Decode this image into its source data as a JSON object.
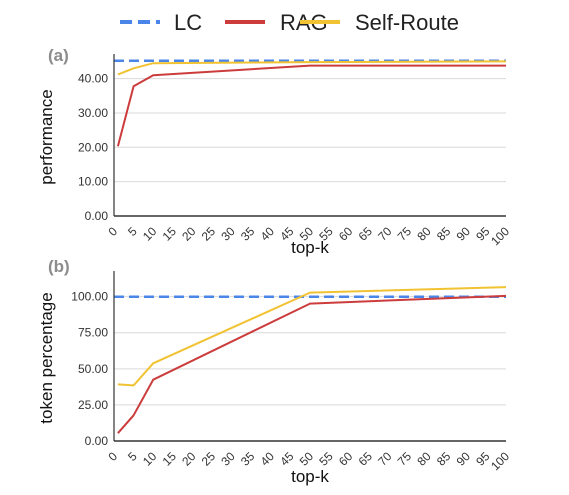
{
  "legend": [
    {
      "name": "LC",
      "color": "#4a86e8",
      "dash": true
    },
    {
      "name": "RAG",
      "color": "#cc3c3c",
      "dash": false
    },
    {
      "name": "Self-Route",
      "color": "#f1c232",
      "dash": false
    }
  ],
  "colors": {
    "grid": "#d9d9d9",
    "axis": "#333333",
    "panel_label": "#8c8c8c"
  },
  "chart_data": [
    {
      "type": "line",
      "panel_label": "(a)",
      "xlabel": "top-k",
      "ylabel": "performance",
      "xlim": [
        0,
        100
      ],
      "ylim": [
        0,
        46
      ],
      "x_ticks": [
        "0",
        "5",
        "10",
        "15",
        "20",
        "25",
        "30",
        "35",
        "40",
        "45",
        "50",
        "55",
        "60",
        "65",
        "70",
        "75",
        "80",
        "85",
        "90",
        "95",
        "100"
      ],
      "y_ticks": [
        "0.00",
        "10.00",
        "20.00",
        "30.00",
        "40.00"
      ],
      "y_tick_values": [
        0,
        10,
        20,
        30,
        40
      ],
      "grid": true,
      "series": [
        {
          "name": "LC",
          "dash": true,
          "x": [
            0,
            100
          ],
          "y": [
            45.2,
            45.2
          ]
        },
        {
          "name": "RAG",
          "dash": false,
          "x": [
            1,
            5,
            10,
            50,
            100
          ],
          "y": [
            20.3,
            37.8,
            41.0,
            43.8,
            43.8
          ]
        },
        {
          "name": "Self-Route",
          "dash": false,
          "x": [
            1,
            5,
            10,
            50,
            100
          ],
          "y": [
            41.2,
            43.0,
            44.5,
            44.8,
            45.0
          ]
        }
      ]
    },
    {
      "type": "line",
      "panel_label": "(b)",
      "xlabel": "top-k",
      "ylabel": "token percentage",
      "xlim": [
        0,
        100
      ],
      "ylim": [
        0,
        115
      ],
      "x_ticks": [
        "0",
        "5",
        "10",
        "15",
        "20",
        "25",
        "30",
        "35",
        "40",
        "45",
        "50",
        "55",
        "60",
        "65",
        "70",
        "75",
        "80",
        "85",
        "90",
        "95",
        "100"
      ],
      "y_ticks": [
        "0.00",
        "25.00",
        "50.00",
        "75.00",
        "100.00"
      ],
      "y_tick_values": [
        0,
        25,
        50,
        75,
        100
      ],
      "grid": true,
      "series": [
        {
          "name": "LC",
          "dash": true,
          "x": [
            0,
            100
          ],
          "y": [
            100,
            100
          ]
        },
        {
          "name": "RAG",
          "dash": false,
          "x": [
            1,
            5,
            10,
            50,
            100
          ],
          "y": [
            5.4,
            17.8,
            42.5,
            95.2,
            100.5
          ]
        },
        {
          "name": "Self-Route",
          "dash": false,
          "x": [
            1,
            5,
            10,
            50,
            100
          ],
          "y": [
            39.2,
            38.5,
            53.8,
            102.8,
            106.6
          ]
        }
      ]
    }
  ]
}
